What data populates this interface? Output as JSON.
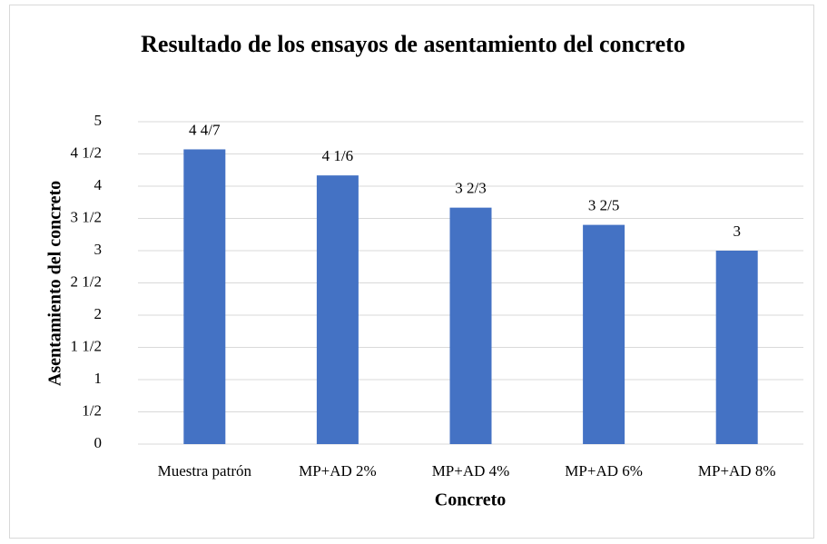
{
  "chart_data": {
    "type": "bar",
    "title": "Resultado de los ensayos de asentamiento del concreto",
    "x_label": "Concreto",
    "y_label": "Asentamiento del concreto",
    "categories": [
      "Muestra patrón",
      "MP+AD 2%",
      "MP+AD 4%",
      "MP+AD 6%",
      "MP+AD 8%"
    ],
    "values": [
      4.571,
      4.167,
      3.667,
      3.4,
      3
    ],
    "value_labels": [
      "4 4/7",
      "4 1/6",
      "3 2/3",
      "3 2/5",
      "3"
    ],
    "color": "#4472c4",
    "ylim": [
      0,
      5
    ],
    "yticks": [
      0,
      {
        "value": 0.5,
        "label": "1/2"
      },
      1,
      {
        "value": 1.5,
        "label": "1 1/2"
      },
      2,
      {
        "value": 2.5,
        "label": "2 1/2"
      },
      3,
      {
        "value": 3.5,
        "label": "3 1/2"
      },
      4,
      {
        "value": 4.5,
        "label": "4 1/2"
      },
      5
    ],
    "grid": true
  }
}
